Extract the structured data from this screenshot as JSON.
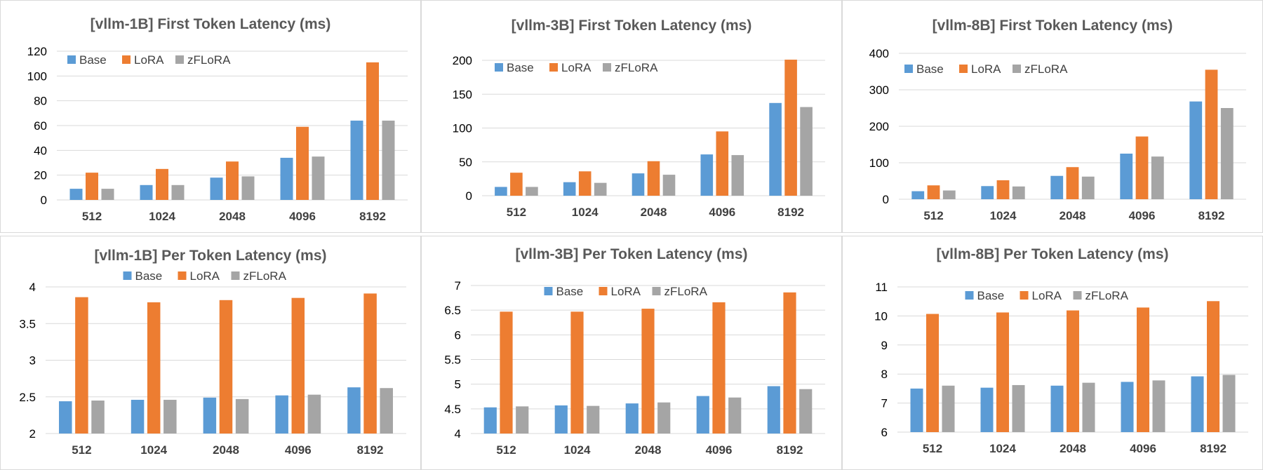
{
  "colors": {
    "Base": "#5b9bd5",
    "LoRA": "#ed7d31",
    "zFLoRA": "#a5a5a5",
    "grid": "#d9d9d9"
  },
  "chart_data": [
    {
      "type": "bar",
      "title": "[vllm-1B] First Token Latency (ms)",
      "categories": [
        "512",
        "1024",
        "2048",
        "4096",
        "8192"
      ],
      "ylim": [
        0,
        120
      ],
      "yticks": [
        0,
        20,
        40,
        60,
        80,
        100,
        120
      ],
      "legend": "top-left",
      "grid": true,
      "series": [
        {
          "name": "Base",
          "values": [
            9,
            12,
            18,
            34,
            64
          ]
        },
        {
          "name": "LoRA",
          "values": [
            22,
            25,
            31,
            59,
            111
          ]
        },
        {
          "name": "zFLoRA",
          "values": [
            9,
            12,
            19,
            35,
            64
          ]
        }
      ]
    },
    {
      "type": "bar",
      "title": "[vllm-3B] First Token Latency (ms)",
      "categories": [
        "512",
        "1024",
        "2048",
        "4096",
        "8192"
      ],
      "ylim": [
        0,
        200
      ],
      "yticks": [
        0,
        50,
        100,
        150,
        200
      ],
      "legend": "top-left",
      "grid": true,
      "series": [
        {
          "name": "Base",
          "values": [
            13,
            20,
            33,
            61,
            137
          ]
        },
        {
          "name": "LoRA",
          "values": [
            34,
            36,
            51,
            95,
            201
          ]
        },
        {
          "name": "zFLoRA",
          "values": [
            13,
            19,
            31,
            60,
            131
          ]
        }
      ]
    },
    {
      "type": "bar",
      "title": "[vllm-8B] First Token Latency (ms)",
      "categories": [
        "512",
        "1024",
        "2048",
        "4096",
        "8192"
      ],
      "ylim": [
        0,
        400
      ],
      "yticks": [
        0,
        100,
        200,
        300,
        400
      ],
      "legend": "top-left",
      "grid": true,
      "series": [
        {
          "name": "Base",
          "values": [
            22,
            36,
            64,
            125,
            268
          ]
        },
        {
          "name": "LoRA",
          "values": [
            38,
            52,
            88,
            172,
            355
          ]
        },
        {
          "name": "zFLoRA",
          "values": [
            24,
            35,
            62,
            117,
            250
          ]
        }
      ]
    },
    {
      "type": "bar",
      "title": "[vllm-1B] Per Token Latency (ms)",
      "categories": [
        "512",
        "1024",
        "2048",
        "4096",
        "8192"
      ],
      "ylim": [
        2,
        4
      ],
      "yticks": [
        2,
        2.5,
        3,
        3.5,
        4
      ],
      "legend": "top-center",
      "grid": true,
      "series": [
        {
          "name": "Base",
          "values": [
            2.44,
            2.46,
            2.49,
            2.52,
            2.63
          ]
        },
        {
          "name": "LoRA",
          "values": [
            3.86,
            3.79,
            3.82,
            3.85,
            3.91
          ]
        },
        {
          "name": "zFLoRA",
          "values": [
            2.45,
            2.46,
            2.47,
            2.53,
            2.62
          ]
        }
      ]
    },
    {
      "type": "bar",
      "title": "[vllm-3B] Per Token Latency (ms)",
      "categories": [
        "512",
        "1024",
        "2048",
        "4096",
        "8192"
      ],
      "ylim": [
        4,
        7
      ],
      "yticks": [
        4,
        4.5,
        5,
        5.5,
        6,
        6.5,
        7
      ],
      "legend": "top-center",
      "grid": true,
      "series": [
        {
          "name": "Base",
          "values": [
            4.53,
            4.57,
            4.61,
            4.76,
            4.96
          ]
        },
        {
          "name": "LoRA",
          "values": [
            6.47,
            6.47,
            6.53,
            6.66,
            6.86
          ]
        },
        {
          "name": "zFLoRA",
          "values": [
            4.55,
            4.56,
            4.63,
            4.73,
            4.9
          ]
        }
      ]
    },
    {
      "type": "bar",
      "title": "[vllm-8B] Per Token Latency (ms)",
      "categories": [
        "512",
        "1024",
        "2048",
        "4096",
        "8192"
      ],
      "ylim": [
        6,
        11
      ],
      "yticks": [
        6,
        7,
        8,
        9,
        10,
        11
      ],
      "legend": "top-center",
      "grid": true,
      "series": [
        {
          "name": "Base",
          "values": [
            7.5,
            7.53,
            7.6,
            7.73,
            7.92
          ]
        },
        {
          "name": "LoRA",
          "values": [
            10.07,
            10.12,
            10.19,
            10.29,
            10.51
          ]
        },
        {
          "name": "zFLoRA",
          "values": [
            7.6,
            7.62,
            7.7,
            7.78,
            7.97
          ]
        }
      ]
    }
  ]
}
